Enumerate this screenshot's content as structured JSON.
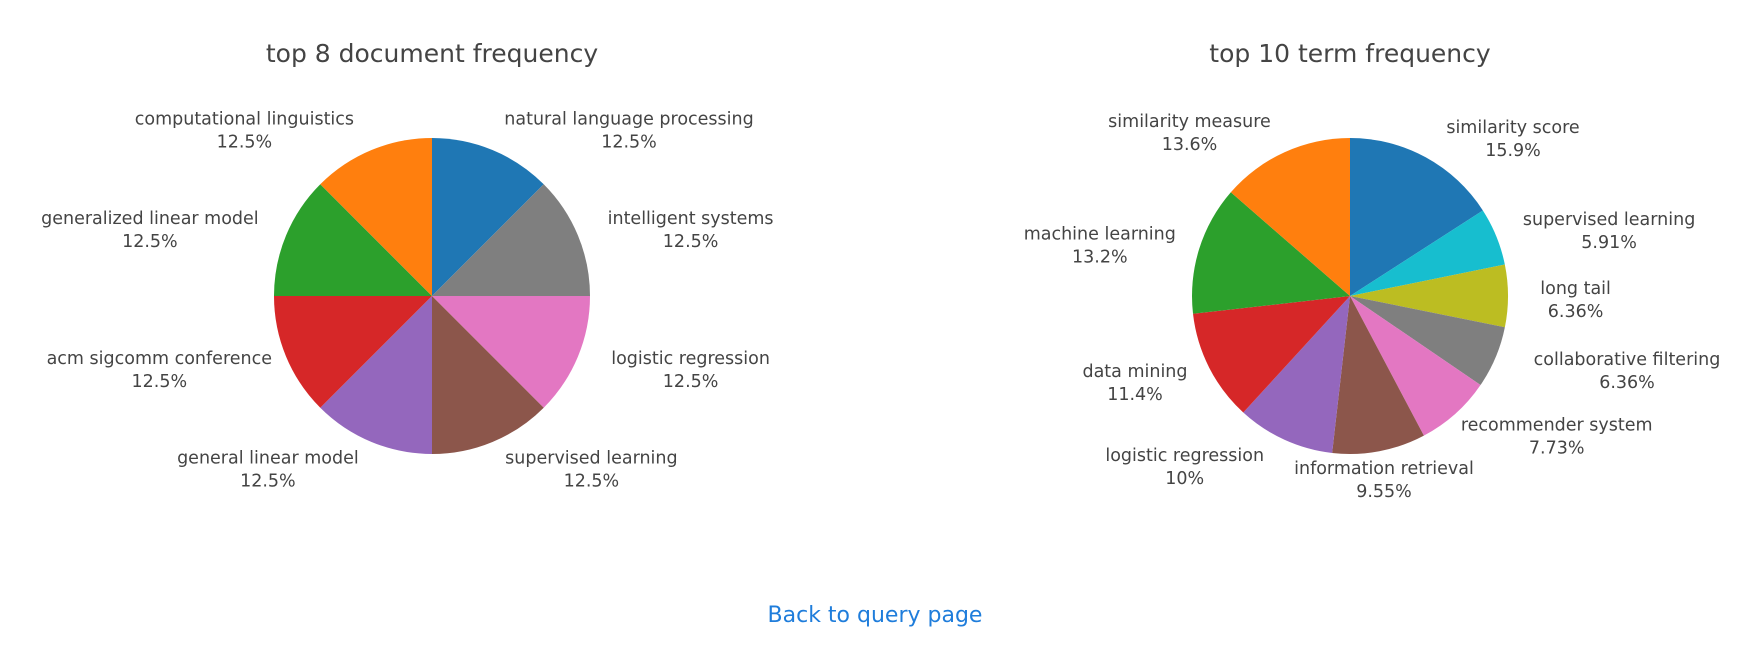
{
  "chart_data": [
    {
      "type": "pie",
      "title": "top 8 document frequency",
      "slices": [
        {
          "label": "natural language processing",
          "value": 12.5,
          "percent_label": "12.5%",
          "color": "#1f77b4"
        },
        {
          "label": "intelligent systems",
          "value": 12.5,
          "percent_label": "12.5%",
          "color": "#7f7f7f"
        },
        {
          "label": "logistic regression",
          "value": 12.5,
          "percent_label": "12.5%",
          "color": "#e377c2"
        },
        {
          "label": "supervised learning",
          "value": 12.5,
          "percent_label": "12.5%",
          "color": "#8c564b"
        },
        {
          "label": "general linear model",
          "value": 12.5,
          "percent_label": "12.5%",
          "color": "#9467bd"
        },
        {
          "label": "acm sigcomm conference",
          "value": 12.5,
          "percent_label": "12.5%",
          "color": "#d62728"
        },
        {
          "label": "generalized linear model",
          "value": 12.5,
          "percent_label": "12.5%",
          "color": "#2ca02c"
        },
        {
          "label": "computational linguistics",
          "value": 12.5,
          "percent_label": "12.5%",
          "color": "#ff7f0e"
        }
      ]
    },
    {
      "type": "pie",
      "title": "top 10 term frequency",
      "slices": [
        {
          "label": "similarity score",
          "value": 15.9,
          "percent_label": "15.9%",
          "color": "#1f77b4"
        },
        {
          "label": "supervised learning",
          "value": 5.91,
          "percent_label": "5.91%",
          "color": "#17becf"
        },
        {
          "label": "long tail",
          "value": 6.36,
          "percent_label": "6.36%",
          "color": "#bcbd22"
        },
        {
          "label": "collaborative filtering",
          "value": 6.36,
          "percent_label": "6.36%",
          "color": "#7f7f7f"
        },
        {
          "label": "recommender system",
          "value": 7.73,
          "percent_label": "7.73%",
          "color": "#e377c2"
        },
        {
          "label": "information retrieval",
          "value": 9.55,
          "percent_label": "9.55%",
          "color": "#8c564b"
        },
        {
          "label": "logistic regression",
          "value": 10,
          "percent_label": "10%",
          "color": "#9467bd"
        },
        {
          "label": "data mining",
          "value": 11.4,
          "percent_label": "11.4%",
          "color": "#d62728"
        },
        {
          "label": "machine learning",
          "value": 13.2,
          "percent_label": "13.2%",
          "color": "#2ca02c"
        },
        {
          "label": "similarity measure",
          "value": 13.6,
          "percent_label": "13.6%",
          "color": "#ff7f0e"
        }
      ]
    }
  ],
  "footer": {
    "back_link": "Back to query page"
  }
}
